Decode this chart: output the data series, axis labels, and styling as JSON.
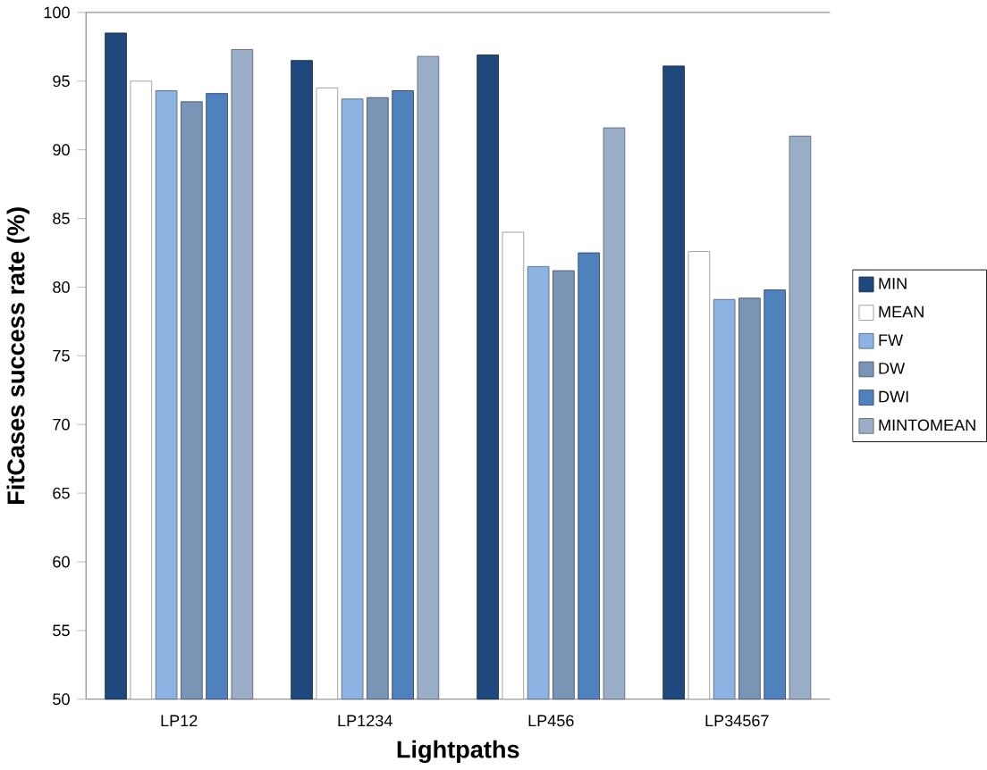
{
  "chart_data": {
    "type": "bar",
    "xlabel": "Lightpaths",
    "ylabel": "FitCases success rate (%)",
    "categories": [
      "LP12",
      "LP1234",
      "LP456",
      "LP34567"
    ],
    "series": [
      {
        "name": "MIN",
        "color": "#1f497d",
        "values": [
          98.5,
          96.5,
          96.9,
          96.1
        ]
      },
      {
        "name": "MEAN",
        "color": "#ffffff",
        "values": [
          95.0,
          94.5,
          84.0,
          82.6
        ]
      },
      {
        "name": "FW",
        "color": "#8db3e2",
        "values": [
          94.3,
          93.7,
          81.5,
          79.1
        ]
      },
      {
        "name": "DW",
        "color": "#7a94b6",
        "values": [
          93.5,
          93.8,
          81.2,
          79.2
        ]
      },
      {
        "name": "DWI",
        "color": "#4f81bd",
        "values": [
          94.1,
          94.3,
          82.5,
          79.8
        ]
      },
      {
        "name": "MINTOMEAN",
        "color": "#9aaec8",
        "values": [
          97.3,
          96.8,
          91.6,
          91.0
        ]
      }
    ],
    "ylim": [
      50,
      100
    ],
    "yticks": [
      50,
      55,
      60,
      65,
      70,
      75,
      80,
      85,
      90,
      95,
      100
    ],
    "grid": false,
    "legend": "right"
  }
}
